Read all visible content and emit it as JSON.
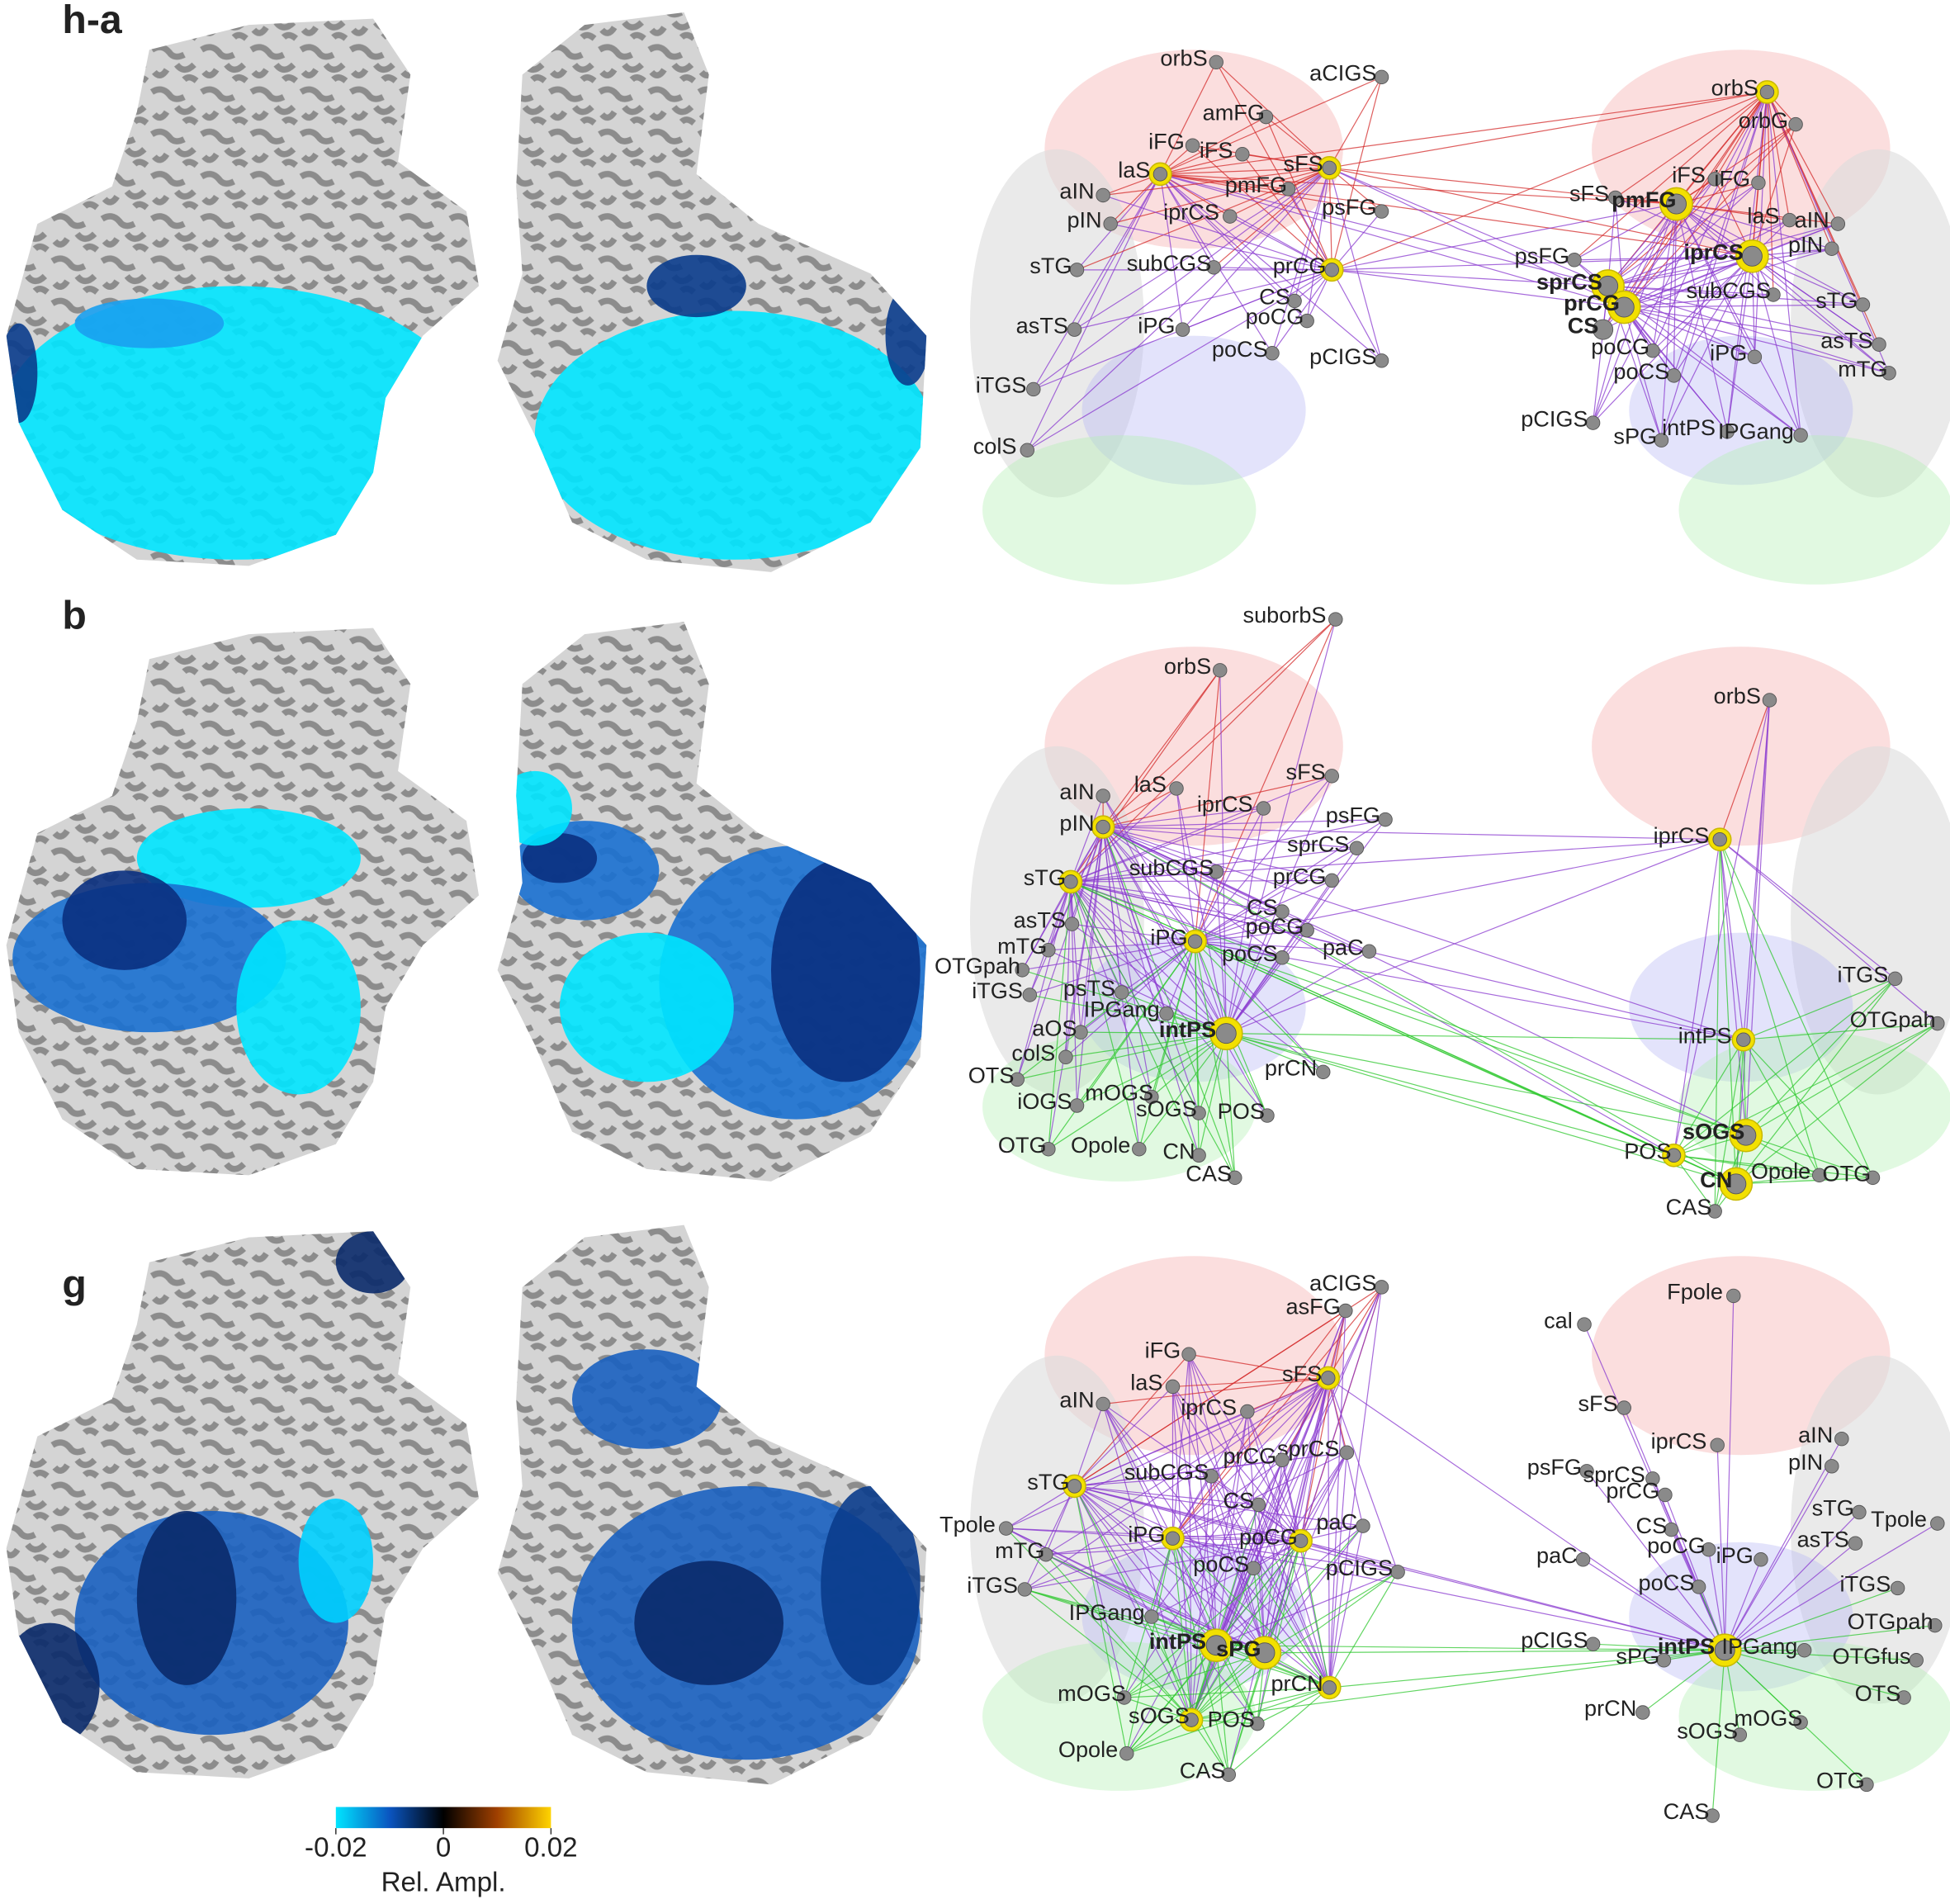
{
  "panels": [
    {
      "label": "h-a",
      "nodes": [
        {
          "label": "orbS"
        },
        {
          "label": "aCIGS"
        },
        {
          "label": "amFG"
        },
        {
          "label": "iFG"
        },
        {
          "label": "iFS"
        },
        {
          "label": "laS",
          "highlight": true
        },
        {
          "label": "sFS",
          "highlight": true
        },
        {
          "label": "aIN"
        },
        {
          "label": "pmFG"
        },
        {
          "label": "pIN"
        },
        {
          "label": "iprCS"
        },
        {
          "label": "psFG"
        },
        {
          "label": "sTG"
        },
        {
          "label": "subCGS"
        },
        {
          "label": "prCG",
          "highlight": true
        },
        {
          "label": "CS"
        },
        {
          "label": "asTS"
        },
        {
          "label": "iPG"
        },
        {
          "label": "poCG"
        },
        {
          "label": "poCS"
        },
        {
          "label": "pCIGS"
        },
        {
          "label": "iTGS"
        },
        {
          "label": "colS"
        },
        {
          "label": "orbS",
          "highlight": true
        },
        {
          "label": "orbG"
        },
        {
          "label": "iFS"
        },
        {
          "label": "iFG"
        },
        {
          "label": "sFS"
        },
        {
          "label": "pmFG",
          "bold": true,
          "highlight": true
        },
        {
          "label": "laS"
        },
        {
          "label": "aIN"
        },
        {
          "label": "pIN"
        },
        {
          "label": "iprCS",
          "bold": true,
          "highlight": true
        },
        {
          "label": "psFG"
        },
        {
          "label": "sprCS",
          "bold": true,
          "highlight": true
        },
        {
          "label": "subCGS"
        },
        {
          "label": "sTG"
        },
        {
          "label": "prCG",
          "bold": true,
          "highlight": true
        },
        {
          "label": "CS",
          "bold": true
        },
        {
          "label": "asTS"
        },
        {
          "label": "poCG"
        },
        {
          "label": "iPG"
        },
        {
          "label": "mTG"
        },
        {
          "label": "poCS"
        },
        {
          "label": "pCIGS"
        },
        {
          "label": "sPG"
        },
        {
          "label": "intPS"
        },
        {
          "label": "IPGang"
        }
      ]
    },
    {
      "label": "b",
      "nodes": [
        {
          "label": "suborbS"
        },
        {
          "label": "orbS"
        },
        {
          "label": "orbS"
        },
        {
          "label": "laS"
        },
        {
          "label": "sFS"
        },
        {
          "label": "aIN"
        },
        {
          "label": "iprCS"
        },
        {
          "label": "psFG"
        },
        {
          "label": "pIN",
          "highlight": true
        },
        {
          "label": "iprCS",
          "highlight": true
        },
        {
          "label": "sprCS"
        },
        {
          "label": "subCGS"
        },
        {
          "label": "sTG",
          "highlight": true
        },
        {
          "label": "prCG"
        },
        {
          "label": "CS"
        },
        {
          "label": "asTS"
        },
        {
          "label": "poCG"
        },
        {
          "label": "iPG",
          "highlight": true
        },
        {
          "label": "mTG"
        },
        {
          "label": "paC"
        },
        {
          "label": "poCS"
        },
        {
          "label": "OTGpah"
        },
        {
          "label": "iTGS"
        },
        {
          "label": "iTGS"
        },
        {
          "label": "psTS"
        },
        {
          "label": "IPGang"
        },
        {
          "label": "OTGpah"
        },
        {
          "label": "intPS",
          "bold": true,
          "highlight": true
        },
        {
          "label": "aOS"
        },
        {
          "label": "intPS",
          "highlight": true
        },
        {
          "label": "colS"
        },
        {
          "label": "prCN"
        },
        {
          "label": "OTS"
        },
        {
          "label": "mOGS"
        },
        {
          "label": "iOGS"
        },
        {
          "label": "sOGS"
        },
        {
          "label": "POS"
        },
        {
          "label": "sOGS",
          "bold": true,
          "highlight": true
        },
        {
          "label": "OTG"
        },
        {
          "label": "Opole"
        },
        {
          "label": "CN"
        },
        {
          "label": "POS",
          "highlight": true
        },
        {
          "label": "Opole"
        },
        {
          "label": "OTG"
        },
        {
          "label": "CAS"
        },
        {
          "label": "CN",
          "bold": true,
          "highlight": true
        },
        {
          "label": "CAS"
        }
      ]
    },
    {
      "label": "g",
      "nodes": [
        {
          "label": "aCIGS"
        },
        {
          "label": "Fpole"
        },
        {
          "label": "asFG"
        },
        {
          "label": "cal"
        },
        {
          "label": "iFG"
        },
        {
          "label": "sFS",
          "highlight": true
        },
        {
          "label": "laS"
        },
        {
          "label": "aIN"
        },
        {
          "label": "sFS"
        },
        {
          "label": "iprCS"
        },
        {
          "label": "aIN"
        },
        {
          "label": "iprCS"
        },
        {
          "label": "sprCS"
        },
        {
          "label": "prCG"
        },
        {
          "label": "pIN"
        },
        {
          "label": "psFG"
        },
        {
          "label": "subCGS"
        },
        {
          "label": "sprCS"
        },
        {
          "label": "sTG",
          "highlight": true
        },
        {
          "label": "prCG"
        },
        {
          "label": "CS"
        },
        {
          "label": "sTG"
        },
        {
          "label": "Tpole"
        },
        {
          "label": "paC"
        },
        {
          "label": "Tpole"
        },
        {
          "label": "CS"
        },
        {
          "label": "iPG",
          "highlight": true
        },
        {
          "label": "poCG",
          "highlight": true
        },
        {
          "label": "asTS"
        },
        {
          "label": "poCG"
        },
        {
          "label": "mTG"
        },
        {
          "label": "iPG"
        },
        {
          "label": "paC"
        },
        {
          "label": "poCS"
        },
        {
          "label": "pCIGS"
        },
        {
          "label": "poCS"
        },
        {
          "label": "iTGS"
        },
        {
          "label": "iTGS"
        },
        {
          "label": "IPGang"
        },
        {
          "label": "OTGpah"
        },
        {
          "label": "intPS",
          "bold": true,
          "highlight": true
        },
        {
          "label": "pCIGS"
        },
        {
          "label": "sPG",
          "bold": true,
          "highlight": true
        },
        {
          "label": "intPS",
          "bold": true,
          "highlight": true
        },
        {
          "label": "sPG"
        },
        {
          "label": "IPGang"
        },
        {
          "label": "OTGfus"
        },
        {
          "label": "prCN",
          "highlight": true
        },
        {
          "label": "mOGS"
        },
        {
          "label": "OTS"
        },
        {
          "label": "prCN"
        },
        {
          "label": "sOGS",
          "highlight": true
        },
        {
          "label": "POS"
        },
        {
          "label": "mOGS"
        },
        {
          "label": "sOGS"
        },
        {
          "label": "Opole"
        },
        {
          "label": "CAS"
        },
        {
          "label": "OTG"
        },
        {
          "label": "CAS"
        }
      ]
    }
  ],
  "colorbar": {
    "range": [
      -0.02,
      0.02
    ],
    "ticks": [
      -0.02,
      0,
      0.02
    ],
    "label": "Rel. Ampl.",
    "colors": [
      "#00e5ff",
      "#0a55c0",
      "#000000",
      "#a04000",
      "#ffd400"
    ]
  }
}
